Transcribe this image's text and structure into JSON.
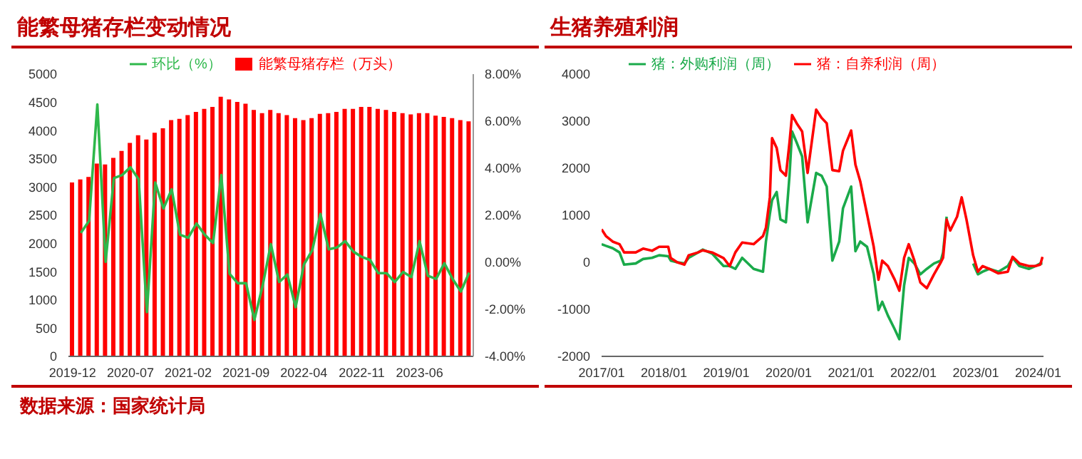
{
  "chart_data": [
    {
      "type": "bar",
      "title": "能繁母猪存栏变动情况",
      "legend": "top",
      "categories": [
        "2019-12",
        null,
        null,
        null,
        null,
        null,
        null,
        "2020-07",
        null,
        null,
        null,
        null,
        null,
        null,
        "2021-02",
        null,
        null,
        null,
        null,
        null,
        null,
        "2021-09",
        null,
        null,
        null,
        null,
        null,
        null,
        "2022-04",
        null,
        null,
        null,
        null,
        null,
        null,
        "2022-11",
        null,
        null,
        null,
        null,
        null,
        null,
        "2023-06",
        null,
        null,
        null,
        null,
        null,
        null
      ],
      "series": [
        {
          "name": "能繁母猪存栏（万头）",
          "color": "#ff0000",
          "values": [
            3080,
            3136,
            3180,
            3415,
            3400,
            3516,
            3638,
            3783,
            3917,
            3840,
            3962,
            4040,
            4185,
            4208,
            4275,
            4330,
            4386,
            4420,
            4598,
            4553,
            4509,
            4475,
            4364,
            4308,
            4364,
            4308,
            4275,
            4219,
            4185,
            4219,
            4297,
            4308,
            4330,
            4386,
            4386,
            4420,
            4420,
            4386,
            4364,
            4330,
            4308,
            4286,
            4308,
            4308,
            4263,
            4241,
            4219,
            4185,
            4163
          ]
        },
        {
          "name": "环比（%）",
          "type": "line",
          "axis": "y2",
          "color": "#2eb84b",
          "values": [
            null,
            1.25,
            1.76,
            6.71,
            0.02,
            3.58,
            3.71,
            4.04,
            3.53,
            -2.12,
            3.39,
            2.29,
            3.1,
            1.17,
            1.04,
            1.65,
            1.17,
            0.82,
            3.71,
            -0.49,
            -0.89,
            -0.89,
            -2.45,
            -1.0,
            0.77,
            -0.84,
            -0.52,
            -1.91,
            -0.09,
            0.5,
            2.05,
            0.55,
            0.63,
            0.9,
            0.45,
            0.23,
            0.1,
            -0.46,
            -0.46,
            -0.84,
            -0.41,
            -0.63,
            0.9,
            -0.57,
            -0.71,
            -0.04,
            -0.71,
            -1.24,
            -0.44
          ]
        }
      ],
      "ylim": [
        0,
        5000
      ],
      "yticks": [
        0,
        500,
        1000,
        1500,
        2000,
        2500,
        3000,
        3500,
        4000,
        4500,
        5000
      ],
      "y2lim": [
        -4,
        8
      ],
      "y2ticks": [
        {
          "value": -4,
          "label": "-4.00%"
        },
        {
          "value": -2,
          "label": "-2.00%"
        },
        {
          "value": 0,
          "label": "0.00%"
        },
        {
          "value": 2,
          "label": "2.00%"
        },
        {
          "value": 4,
          "label": "4.00%"
        },
        {
          "value": 6,
          "label": "6.00%"
        },
        {
          "value": 8,
          "label": "8.00%"
        }
      ],
      "annotations": [
        "数据来源：国家统计局"
      ]
    },
    {
      "type": "line",
      "title": "生猪养殖利润",
      "legend": "top",
      "x": [
        "2017-01-01",
        "2017-01-26",
        "2017-03-07",
        "2017-04-16",
        "2017-05-13",
        "2017-07-20",
        "2017-09-01",
        "2017-10-23",
        "2017-12-04",
        "2018-01-26",
        "2018-02-10",
        "2018-03-20",
        "2018-05-01",
        "2018-05-26",
        "2018-07-20",
        "2018-08-16",
        "2018-10-10",
        "2018-12-16",
        "2019-01-21",
        "2019-02-23",
        "2019-04-04",
        "2019-06-10",
        "2019-08-04",
        "2019-08-21",
        "2019-09-13",
        "2019-09-26",
        "2019-10-23",
        "2019-11-14",
        "2019-12-16",
        "2020-01-06",
        "2020-01-21",
        "2020-02-17",
        "2020-03-20",
        "2020-04-21",
        "2020-06-10",
        "2020-07-12",
        "2020-08-11",
        "2020-09-13",
        "2020-10-23",
        "2020-11-14",
        "2021-01-01",
        "2021-01-26",
        "2021-02-23",
        "2021-04-04",
        "2021-05-13",
        "2021-06-10",
        "2021-07-02",
        "2021-08-04",
        "2021-09-13",
        "2021-10-10",
        "2021-11-07",
        "2021-12-04",
        "2022-01-06",
        "2022-02-10",
        "2022-03-20",
        "2022-05-01",
        "2022-06-10",
        "2022-06-23",
        "2022-07-14",
        "2022-08-04",
        "2022-09-13",
        "2022-10-10",
        "2022-11-07",
        "2022-12-16",
        "2023-01-13",
        "2023-02-10",
        "2023-03-20",
        "2023-05-13",
        "2023-07-07",
        "2023-08-04",
        "2023-09-13",
        "2023-11-07",
        "2023-12-16",
        "2024-01-13",
        "2024-01-26"
      ],
      "series": [
        {
          "name": "猪：外购利润（周）",
          "color": "#1aaa4a",
          "values": [
            385,
            350,
            300,
            210,
            -50,
            -25,
            70,
            95,
            150,
            130,
            35,
            0,
            -25,
            95,
            210,
            270,
            185,
            -80,
            -80,
            -140,
            95,
            -140,
            -200,
            440,
            1025,
            1320,
            1495,
            910,
            850,
            1840,
            2780,
            2545,
            2250,
            850,
            1900,
            1840,
            1610,
            35,
            440,
            1145,
            1610,
            235,
            440,
            330,
            -255,
            -1015,
            -840,
            -1130,
            -1425,
            -1635,
            -490,
            95,
            -25,
            -255,
            -140,
            -25,
            35,
            210,
            970,
            null,
            null,
            null,
            null,
            -25,
            -255,
            -200,
            -140,
            -200,
            -80,
            95,
            -80,
            -140,
            -80,
            -25,
            -25
          ]
        },
        {
          "name": "猪：自养利润（周）",
          "color": "#ff0000",
          "values": [
            700,
            560,
            440,
            385,
            210,
            210,
            290,
            245,
            330,
            330,
            90,
            0,
            -50,
            150,
            210,
            255,
            210,
            90,
            -80,
            210,
            420,
            385,
            560,
            735,
            1380,
            2640,
            2430,
            1960,
            1840,
            2545,
            3130,
            2955,
            2780,
            1900,
            3245,
            3070,
            2955,
            1960,
            1935,
            2370,
            2800,
            2075,
            1725,
            1025,
            330,
            -370,
            35,
            -80,
            -370,
            -605,
            95,
            385,
            35,
            -430,
            -550,
            -255,
            0,
            95,
            910,
            675,
            970,
            1380,
            910,
            150,
            -200,
            -80,
            -140,
            -235,
            -200,
            115,
            -25,
            -80,
            -80,
            -50,
            115
          ]
        }
      ],
      "xlim": [
        "2017-01-01",
        "2024-02-01"
      ],
      "xticks": [
        {
          "value": "2017-01-01",
          "label": "2017/01"
        },
        {
          "value": "2018-01-01",
          "label": "2018/01"
        },
        {
          "value": "2019-01-01",
          "label": "2019/01"
        },
        {
          "value": "2020-01-01",
          "label": "2020/01"
        },
        {
          "value": "2021-01-01",
          "label": "2021/01"
        },
        {
          "value": "2022-01-01",
          "label": "2022/01"
        },
        {
          "value": "2023-01-01",
          "label": "2023/01"
        },
        {
          "value": "2024-01-01",
          "label": "2024/01"
        }
      ],
      "ylim": [
        -2000,
        4000
      ],
      "yticks": [
        -2000,
        -1000,
        0,
        1000,
        2000,
        3000,
        4000
      ]
    }
  ]
}
